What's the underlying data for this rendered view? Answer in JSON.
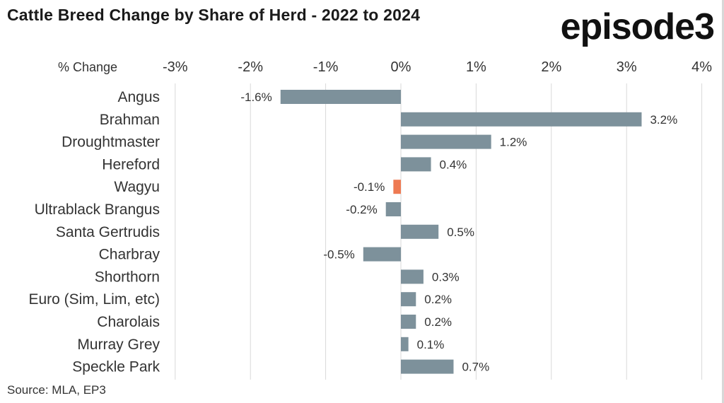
{
  "header": {
    "title": "Cattle Breed Change by Share of Herd - 2022 to 2024",
    "logo_text": "episode3"
  },
  "footer": {
    "source": "Source: MLA, EP3"
  },
  "colors": {
    "bar_default": "#7d919b",
    "bar_highlight": "#ee7a52",
    "gridline": "#d9d9d9",
    "text": "#333333"
  },
  "chart_data": {
    "type": "bar",
    "orientation": "horizontal",
    "title": "Cattle Breed Change by Share of Herd - 2022 to 2024",
    "xlabel": "% Change",
    "ylabel": "",
    "xlim": [
      -3,
      4
    ],
    "xticks": [
      -3,
      -2,
      -1,
      0,
      1,
      2,
      3,
      4
    ],
    "xtick_labels": [
      "-3%",
      "-2%",
      "-1%",
      "0%",
      "1%",
      "2%",
      "3%",
      "4%"
    ],
    "grid": true,
    "legend": "none",
    "categories": [
      "Angus",
      "Brahman",
      "Droughtmaster",
      "Hereford",
      "Wagyu",
      "Ultrablack Brangus",
      "Santa Gertrudis",
      "Charbray",
      "Shorthorn",
      "Euro (Sim, Lim, etc)",
      "Charolais",
      "Murray Grey",
      "Speckle Park"
    ],
    "values": [
      -1.6,
      3.2,
      1.2,
      0.4,
      -0.1,
      -0.2,
      0.5,
      -0.5,
      0.3,
      0.2,
      0.2,
      0.1,
      0.7
    ],
    "data_labels": [
      "-1.6%",
      "3.2%",
      "1.2%",
      "0.4%",
      "-0.1%",
      "-0.2%",
      "0.5%",
      "-0.5%",
      "0.3%",
      "0.2%",
      "0.2%",
      "0.1%",
      "0.7%"
    ],
    "highlight_category": "Wagyu"
  }
}
